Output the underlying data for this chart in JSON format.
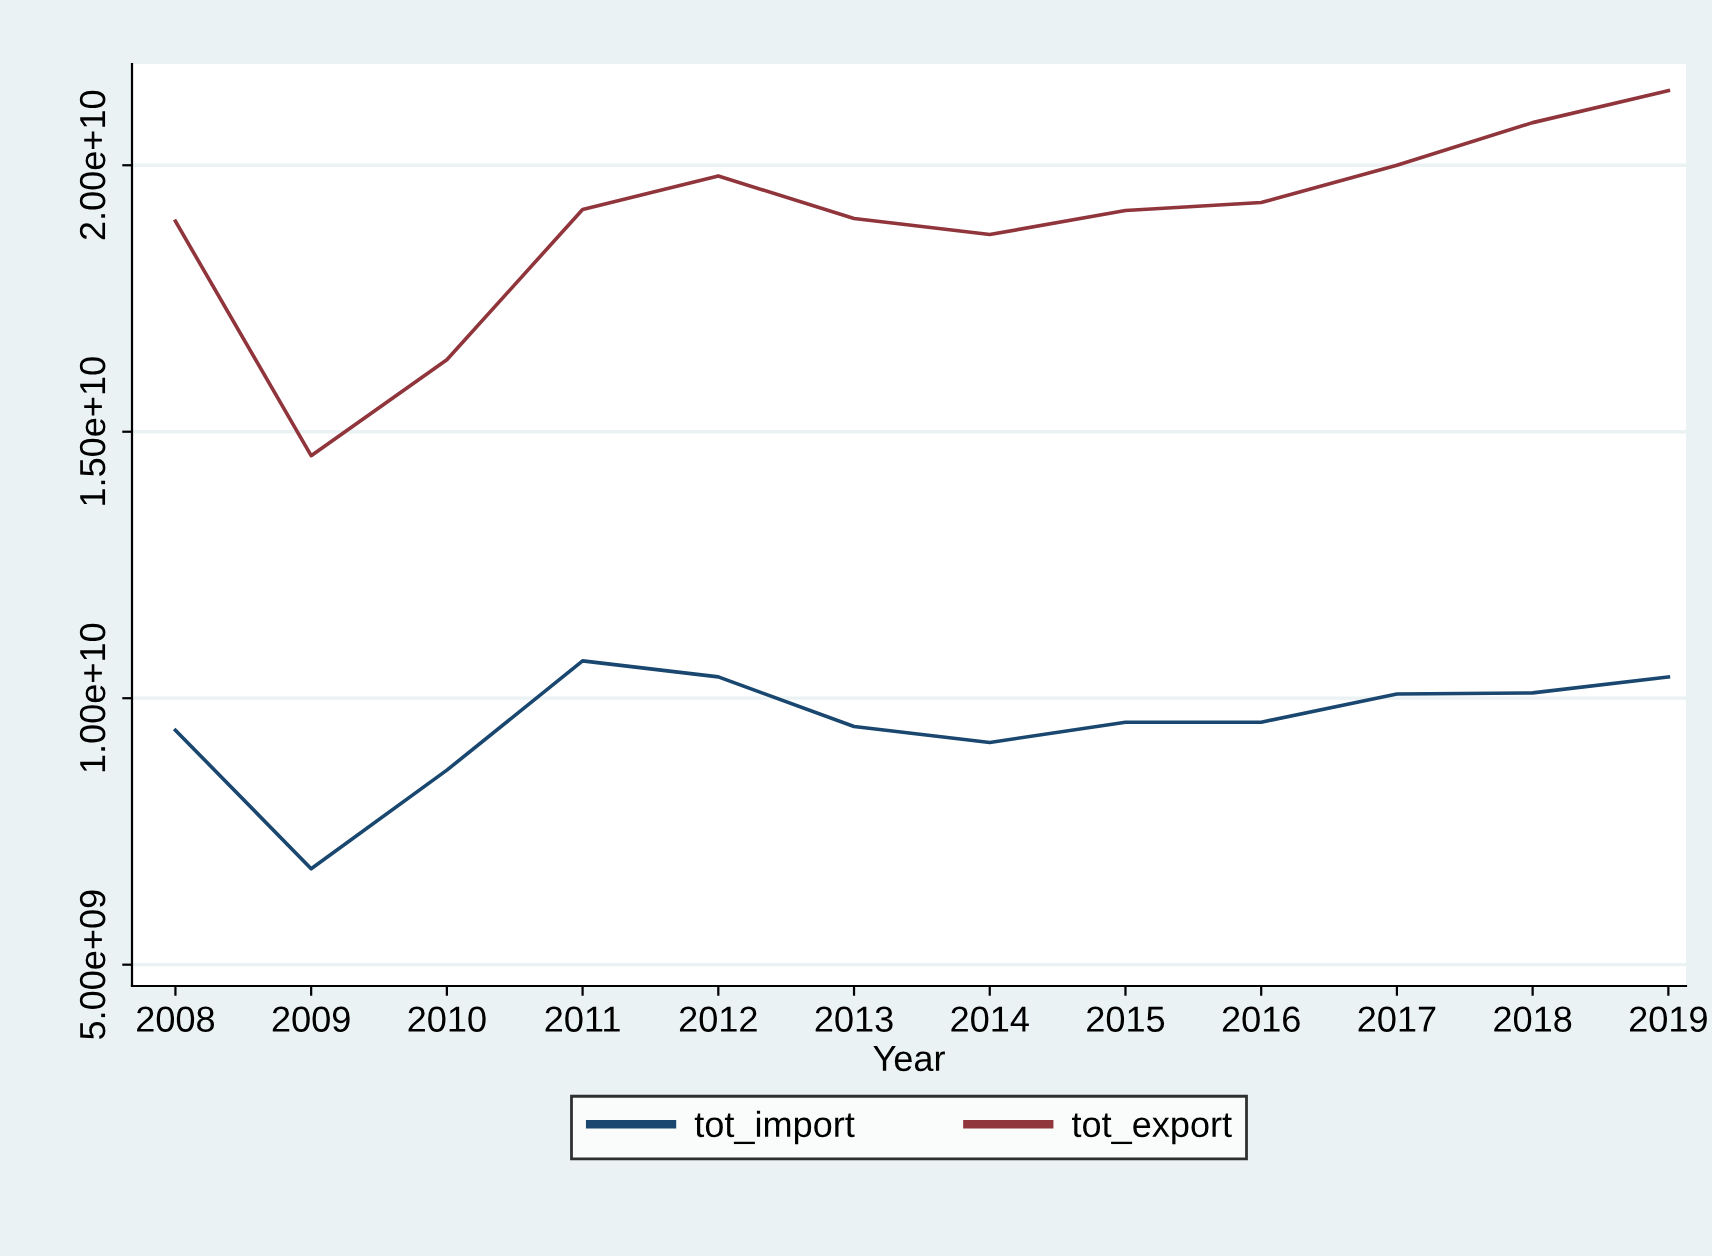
{
  "chart_data": {
    "type": "line",
    "xlabel": "Year",
    "x": [
      2008,
      2009,
      2010,
      2011,
      2012,
      2013,
      2014,
      2015,
      2016,
      2017,
      2018,
      2019
    ],
    "series": [
      {
        "name": "tot_import",
        "color": "#1a476f",
        "values": [
          9400000000,
          6800000000,
          8650000000,
          10700000000,
          10400000000,
          9470000000,
          9170000000,
          9550000000,
          9550000000,
          10080000000,
          10100000000,
          10400000000
        ]
      },
      {
        "name": "tot_export",
        "color": "#90353b",
        "values": [
          18950000000,
          14550000000,
          16350000000,
          19170000000,
          19800000000,
          19000000000,
          18700000000,
          19150000000,
          19300000000,
          20000000000,
          20800000000,
          21400000000
        ]
      }
    ],
    "xlim": [
      2007.68,
      2019.13
    ],
    "xticks": [
      2008,
      2009,
      2010,
      2011,
      2012,
      2013,
      2014,
      2015,
      2016,
      2017,
      2018,
      2019
    ],
    "ylim": [
      4600000000,
      21900000000
    ],
    "yticks": [
      {
        "value": 5000000000,
        "label": "5.00e+09"
      },
      {
        "value": 10000000000,
        "label": "1.00e+10"
      },
      {
        "value": 15000000000,
        "label": "1.50e+10"
      },
      {
        "value": 20000000000,
        "label": "2.00e+10"
      }
    ],
    "grid": "y",
    "legend": "bottom",
    "marker": "none",
    "line_style": "solid"
  }
}
